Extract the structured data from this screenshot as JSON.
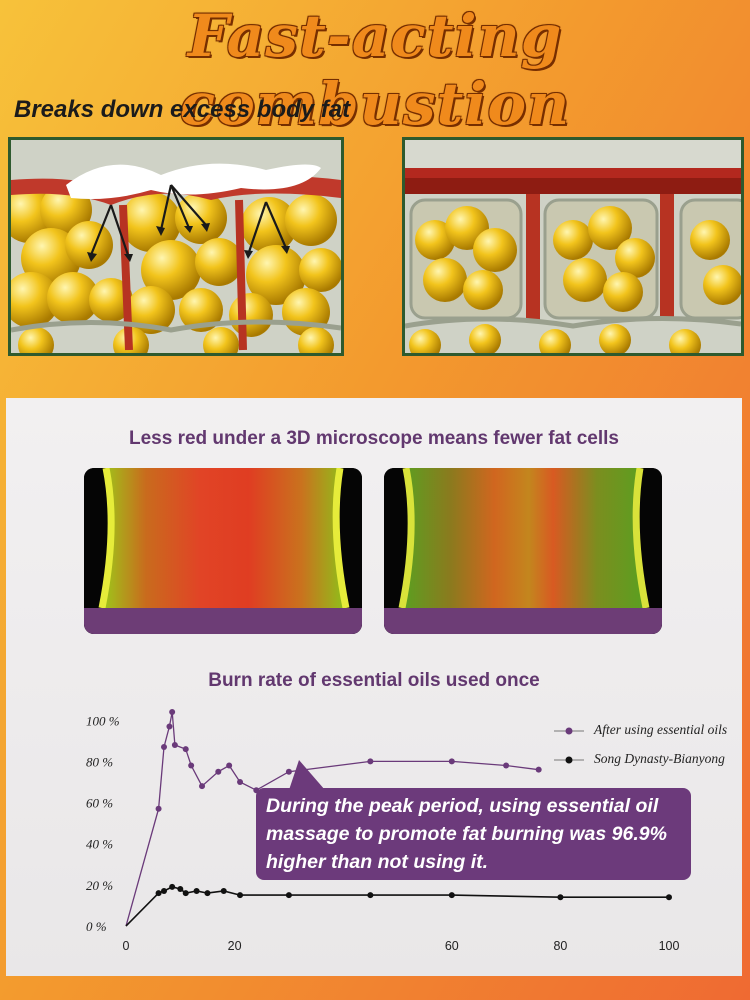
{
  "header": {
    "title": "Fast-acting combustion",
    "subtitle": "Breaks down excess body fat"
  },
  "microscope": {
    "title": "Less red under a 3D microscope means fewer fat cells"
  },
  "chart_data": {
    "type": "line",
    "title": "Burn rate of essential oils used once",
    "y_ticks": [
      "100 %",
      "80 %",
      "60 %",
      "40 %",
      "20 %",
      "0 %"
    ],
    "x_ticks": [
      "0",
      "20",
      "60",
      "80",
      "100"
    ],
    "xlim": [
      0,
      100
    ],
    "ylim": [
      0,
      105
    ],
    "series": [
      {
        "name": "After using essential oils",
        "color": "#6a3a7a",
        "points": [
          [
            0,
            0
          ],
          [
            6,
            57
          ],
          [
            7,
            87
          ],
          [
            8,
            97
          ],
          [
            8.5,
            104
          ],
          [
            9,
            88
          ],
          [
            11,
            86
          ],
          [
            12,
            78
          ],
          [
            14,
            68
          ],
          [
            17,
            75
          ],
          [
            19,
            78
          ],
          [
            21,
            70
          ],
          [
            24,
            66
          ],
          [
            30,
            75
          ],
          [
            45,
            80
          ],
          [
            60,
            80
          ],
          [
            70,
            78
          ],
          [
            76,
            76
          ]
        ]
      },
      {
        "name": "Song Dynasty-Bianyong",
        "color": "#111111",
        "points": [
          [
            0,
            0
          ],
          [
            6,
            16
          ],
          [
            7,
            17
          ],
          [
            8.5,
            19
          ],
          [
            10,
            18
          ],
          [
            11,
            16
          ],
          [
            13,
            17
          ],
          [
            15,
            16
          ],
          [
            18,
            17
          ],
          [
            21,
            15
          ],
          [
            30,
            15
          ],
          [
            45,
            15
          ],
          [
            60,
            15
          ],
          [
            80,
            14
          ],
          [
            100,
            14
          ]
        ]
      }
    ]
  },
  "callout": {
    "text": "During the peak period, using essential oil massage to promote fat burning was 96.9% higher than not using it."
  }
}
